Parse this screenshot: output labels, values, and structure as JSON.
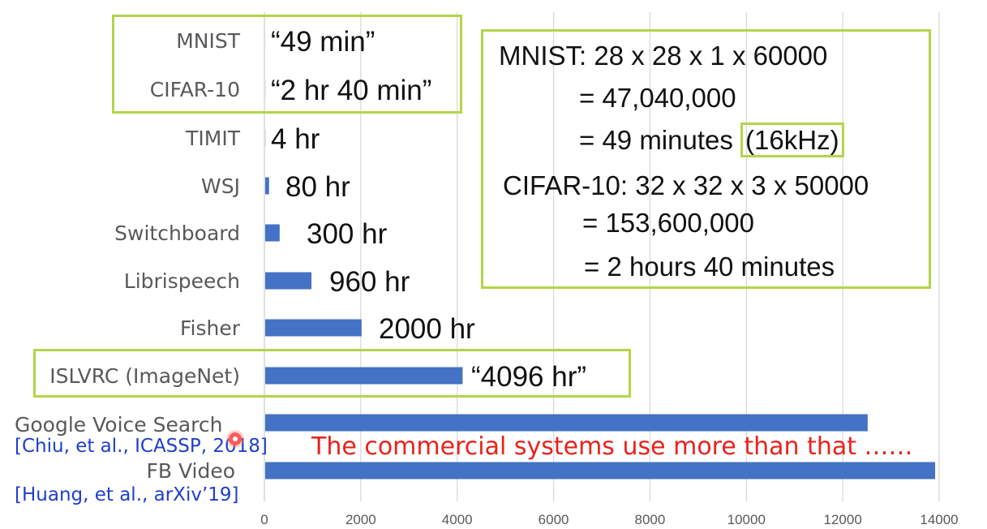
{
  "chart_data": {
    "type": "bar",
    "orientation": "horizontal",
    "categories": [
      "MNIST",
      "CIFAR-10",
      "TIMIT",
      "WSJ",
      "Switchboard",
      "Librispeech",
      "Fisher",
      "ISLVRC (ImageNet)",
      "Google Voice Search",
      "FB Video"
    ],
    "values": [
      0.82,
      2.67,
      4,
      80,
      300,
      960,
      2000,
      4096,
      12500,
      13900
    ],
    "data_labels": [
      "“49 min”",
      "“2 hr 40 min”",
      "4 hr",
      "80 hr",
      "300 hr",
      "960 hr",
      "2000 hr",
      "“4096 hr”",
      "",
      ""
    ],
    "x_ticks": [
      "0",
      "2000",
      "4000",
      "6000",
      "8000",
      "10000",
      "12000",
      "14000"
    ],
    "xlim": [
      0,
      14000
    ],
    "grid": "vertical",
    "bar_color": "#4472c4",
    "highlight_color": "#b4d44a"
  },
  "calc": {
    "mnist_line": "MNIST: 28 x 28 x 1 x 60000",
    "mnist_eq1": "= 47,040,000",
    "mnist_eq2": "= 49 minutes",
    "mnist_rate": "(16kHz)",
    "cifar_line": "CIFAR-10: 32 x 32 x 3 x 50000",
    "cifar_eq1": "= 153,600,000",
    "cifar_eq2": "= 2 hours 40 minutes"
  },
  "citations": {
    "google": "[Chiu, et al., ICASSP, 2018]",
    "fb": "[Huang, et al., arXiv’19]"
  },
  "note": "The commercial systems use more than that ……"
}
